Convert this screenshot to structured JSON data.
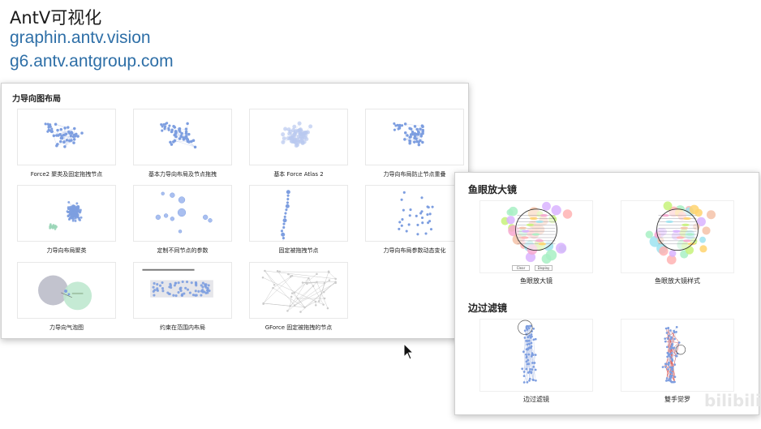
{
  "header": {
    "title": "AntV可视化",
    "link1": "graphin.antv.vision",
    "link2": "g6.antv.antgroup.com"
  },
  "force_panel": {
    "title": "力导向图布局",
    "cards": [
      {
        "caption": "Force2 聚类及固定拖拽节点",
        "icon": "scatter-graph"
      },
      {
        "caption": "基本力导向布局及节点拖拽",
        "icon": "scatter-graph"
      },
      {
        "caption": "基本 Force Atlas 2",
        "icon": "faded-graph"
      },
      {
        "caption": "力导向布局防止节点重叠",
        "icon": "scatter-graph"
      },
      {
        "caption": "力导向布局聚类",
        "icon": "dense-cluster"
      },
      {
        "caption": "定制不同节点的参数",
        "icon": "sized-nodes"
      },
      {
        "caption": "固定被拖拽节点",
        "icon": "chain-graph"
      },
      {
        "caption": "力导向布局参数动态变化",
        "icon": "sparse-graph"
      },
      {
        "caption": "力导向气泡图",
        "icon": "bubble-chart"
      },
      {
        "caption": "约束在范围内布局",
        "icon": "bounded-graph"
      },
      {
        "caption": "GForce 固定被拖拽的节点",
        "icon": "gforce-graph"
      }
    ]
  },
  "fisheye_panel": {
    "title": "鱼眼放大镜",
    "cards": [
      {
        "caption": "鱼眼放大镜",
        "icon": "fisheye-lens"
      },
      {
        "caption": "鱼眼放大镜样式",
        "icon": "fisheye-lens"
      }
    ],
    "buttons": [
      "Clear",
      "Display"
    ]
  },
  "edge_panel": {
    "title": "边过滤镜",
    "cards": [
      {
        "caption": "边过滤镜",
        "icon": "edge-filter-lens"
      },
      {
        "caption": "雙手觉罗",
        "icon": "edge-filter-lens-red"
      }
    ]
  },
  "watermark": "bilibili",
  "colors": {
    "link": "#2e6fa7",
    "node": "#7d9ee0",
    "edge_red": "#d9534f"
  }
}
